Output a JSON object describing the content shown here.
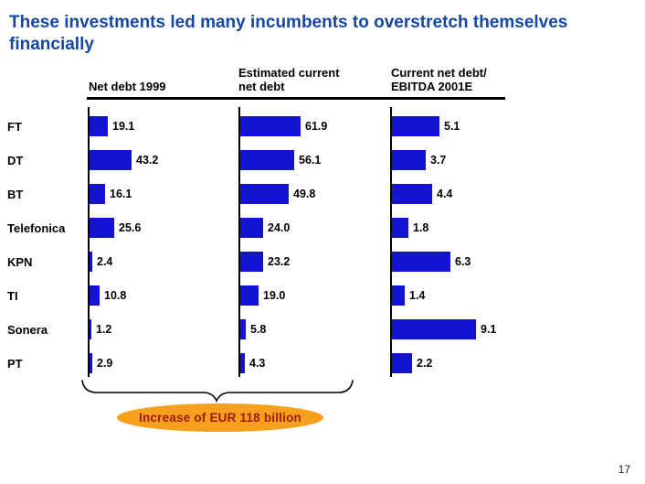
{
  "slide": {
    "title": "These investments led many incumbents to overstretch themselves\nfinancially",
    "title_color": "#17479E",
    "page_number": "17"
  },
  "chart_data": {
    "type": "bar",
    "orientation": "horizontal",
    "categories": [
      "FT",
      "DT",
      "BT",
      "Telefonica",
      "KPN",
      "TI",
      "Sonera",
      "PT"
    ],
    "series": [
      {
        "name": "Net debt 1999",
        "header": "Net debt 1999",
        "values": [
          19.1,
          43.2,
          16.1,
          25.6,
          2.4,
          10.8,
          1.2,
          2.9
        ]
      },
      {
        "name": "Estimated current net debt",
        "header": "Estimated current\nnet debt",
        "values": [
          61.9,
          56.1,
          49.8,
          24.0,
          23.2,
          19.0,
          5.8,
          4.3
        ]
      },
      {
        "name": "Current net debt / EBITDA 2001E",
        "header": "Current net debt/\nEBITDA 2001E",
        "values": [
          5.1,
          3.7,
          4.4,
          1.8,
          6.3,
          1.4,
          9.1,
          2.2
        ]
      }
    ],
    "value_label_decimals": 1,
    "bar_color": "#1413CF",
    "axis_color": "#000000",
    "grid": false,
    "legend": false
  },
  "annotation": {
    "brace_label": "Increase of EUR 118 billion",
    "ellipse_fill": "#F6A01E",
    "text_color": "#9E1A1A"
  }
}
